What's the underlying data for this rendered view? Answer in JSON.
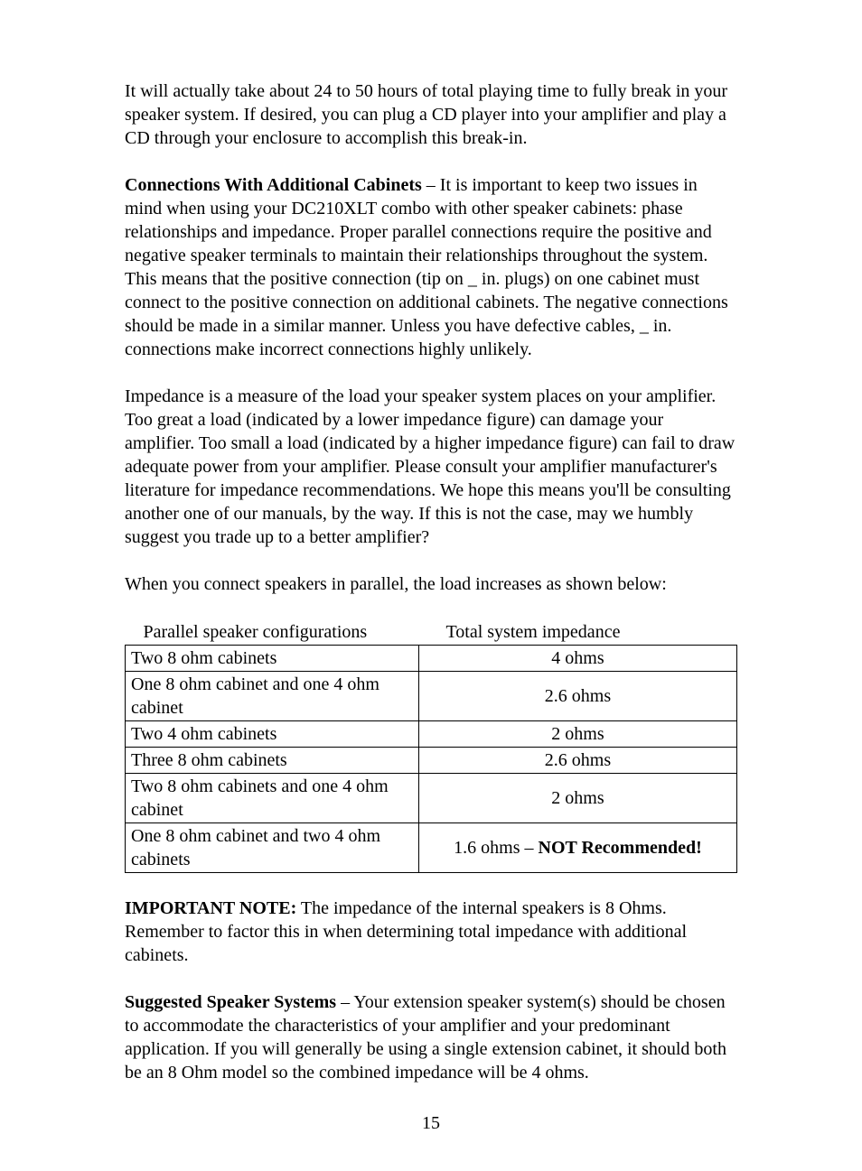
{
  "para1": "It will actually take about 24 to 50 hours of total playing time to fully break in your speaker system. If desired, you can plug a CD player into your amplifier and play a CD through your enclosure to accomplish this break-in.",
  "para2_heading": "Connections With Additional Cabinets",
  "para2_body": " – It is important to keep two issues in mind when using your DC210XLT combo with other speaker cabinets: phase relationships and impedance. Proper parallel connections require the positive and negative speaker terminals to maintain their relationships throughout the system. This means that the positive connection (tip on _ in. plugs) on one cabinet must connect to the positive connection on additional cabinets. The negative connections should be made in a similar manner. Unless you have defective cables, _ in. connections make incorrect connections highly unlikely.",
  "para3": "Impedance is a measure of the load your speaker system places on your amplifier. Too great a load (indicated by a lower impedance figure) can damage your amplifier. Too small a load (indicated by a higher impedance figure) can fail to draw adequate power from your amplifier. Please consult your amplifier manufacturer's literature for impedance recommendations. We hope this means you'll be consulting another one of our manuals, by the way. If this is not the case, may we humbly suggest you trade up to a better amplifier?",
  "para4": "When you connect speakers in parallel, the load increases as shown below:",
  "table": {
    "header": {
      "col1": "Parallel speaker configurations",
      "col2": "Total system impedance"
    },
    "rows": [
      {
        "config": "Two 8 ohm cabinets",
        "impedance": "4 ohms",
        "bold_suffix": ""
      },
      {
        "config": "One 8 ohm cabinet and one 4 ohm cabinet",
        "impedance": "2.6 ohms",
        "bold_suffix": ""
      },
      {
        "config": "Two 4 ohm cabinets",
        "impedance": "2 ohms",
        "bold_suffix": ""
      },
      {
        "config": "Three 8 ohm cabinets",
        "impedance": "2.6 ohms",
        "bold_suffix": ""
      },
      {
        "config": "Two 8 ohm cabinets and one 4 ohm cabinet",
        "impedance": "2 ohms",
        "bold_suffix": ""
      },
      {
        "config": "One 8 ohm cabinet and two 4 ohm cabinets",
        "impedance": "1.6 ohms – ",
        "bold_suffix": "NOT Recommended!"
      }
    ]
  },
  "para5_heading": "IMPORTANT NOTE:",
  "para5_body": " The impedance of the internal speakers is 8 Ohms. Remember to factor this in when determining total impedance with additional cabinets.",
  "para6_heading": "Suggested Speaker Systems",
  "para6_body": " – Your extension speaker system(s) should be chosen to accommodate the characteristics of your amplifier and your predominant application. If you will generally be using a single extension cabinet, it should both be an 8 Ohm model so the combined impedance will be 4 ohms.",
  "page_number": "15"
}
